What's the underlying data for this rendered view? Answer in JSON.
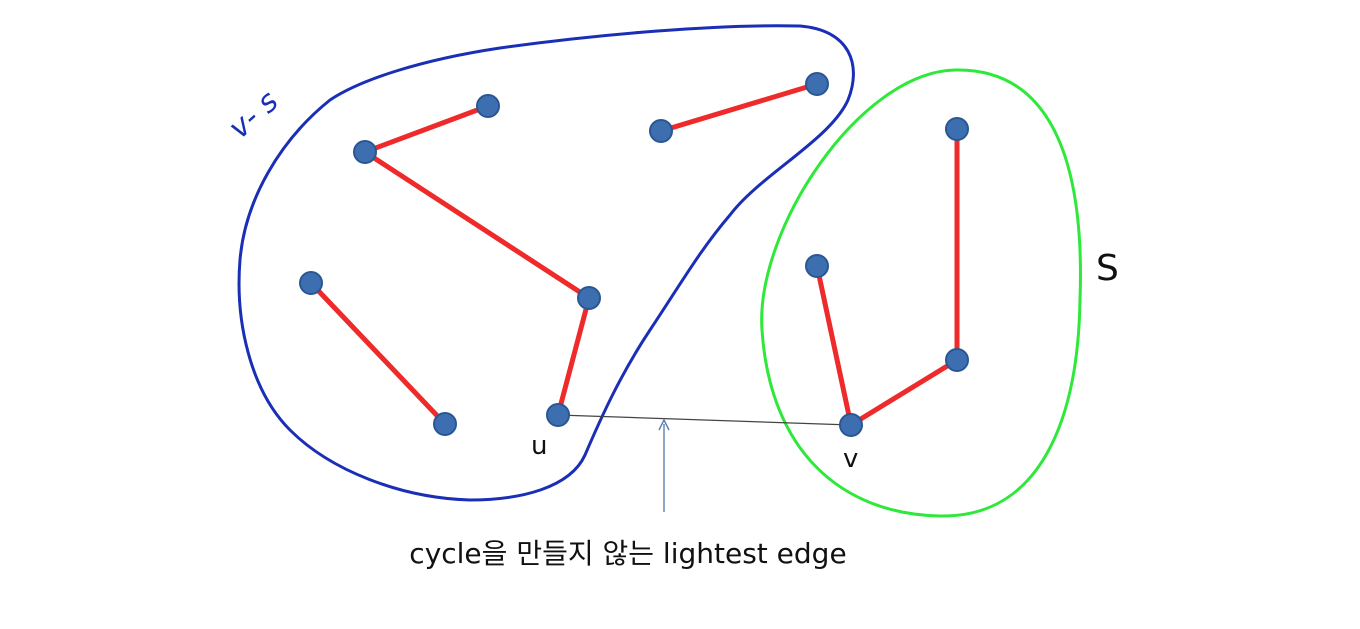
{
  "labels": {
    "set_v_minus_s": "v- s",
    "set_s": "S",
    "node_u": "u",
    "node_v": "v",
    "caption": "cycle을 만들지 않는 lightest edge"
  },
  "colors": {
    "v_minus_s_outline": "#1a2fb5",
    "s_outline": "#2ee83a",
    "tree_edge": "#ee2a2a",
    "candidate_edge": "#444444",
    "arrow": "#5a7fb0",
    "node_fill": "#3d6fb0"
  },
  "nodes": [
    {
      "id": "a",
      "region": "v-s"
    },
    {
      "id": "b",
      "region": "v-s"
    },
    {
      "id": "c",
      "region": "v-s"
    },
    {
      "id": "d",
      "region": "v-s"
    },
    {
      "id": "u",
      "region": "v-s",
      "label": "u"
    },
    {
      "id": "e",
      "region": "v-s"
    },
    {
      "id": "f",
      "region": "v-s"
    },
    {
      "id": "g",
      "region": "v-s"
    },
    {
      "id": "h",
      "region": "v-s"
    },
    {
      "id": "i",
      "region": "S"
    },
    {
      "id": "j",
      "region": "S"
    },
    {
      "id": "k",
      "region": "S"
    },
    {
      "id": "v",
      "region": "S",
      "label": "v"
    }
  ],
  "edges": [
    {
      "from": "b",
      "to": "a",
      "kind": "tree"
    },
    {
      "from": "b",
      "to": "c",
      "kind": "tree"
    },
    {
      "from": "c",
      "to": "u",
      "kind": "tree"
    },
    {
      "from": "d",
      "to": "e",
      "kind": "tree"
    },
    {
      "from": "f",
      "to": "g",
      "kind": "tree"
    },
    {
      "from": "i",
      "to": "k",
      "kind": "tree"
    },
    {
      "from": "j",
      "to": "v",
      "kind": "tree"
    },
    {
      "from": "v",
      "to": "k",
      "kind": "tree"
    },
    {
      "from": "u",
      "to": "v",
      "kind": "lightest-crossing"
    }
  ]
}
